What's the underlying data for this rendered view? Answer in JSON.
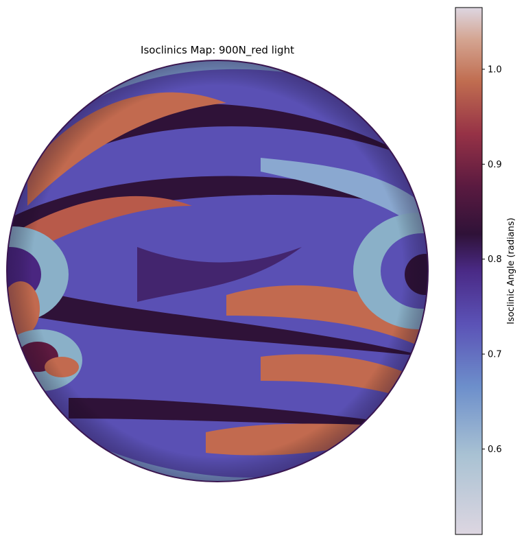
{
  "chart_data": {
    "type": "heatmap",
    "title": "Isoclinics Map: 900N_red light",
    "colormap": "twilight_shifted",
    "colorbar": {
      "label": "Isoclinic Angle (radians)",
      "range": [
        0.51,
        1.065
      ],
      "ticks": [
        0.6,
        0.7,
        0.8,
        0.9,
        1.0
      ],
      "tick_labels": [
        "0.6",
        "0.7",
        "0.8",
        "0.9",
        "1.0"
      ],
      "placement": "right"
    },
    "field": {
      "shape": "circular disk",
      "background_value": 0.69,
      "band_value_levels": [
        0.55,
        0.63,
        0.69,
        0.76,
        0.8,
        0.85,
        0.92,
        0.98
      ],
      "singular_points": [
        "left edge",
        "right edge",
        "lower-left"
      ]
    },
    "axes_visible": false,
    "grid": false,
    "colors": {
      "c0_55": "#d6cddc",
      "c0_60": "#8ab0c8",
      "c0_65": "#6a8bcc",
      "c0_70": "#5a50b4",
      "c0_75": "#4a2680",
      "c0_80": "#2f1238",
      "c0_85": "#5e1a40",
      "c0_90": "#9a3446",
      "c0_95": "#c26a4f",
      "c1_00": "#d39a7e",
      "c1_05": "#dcd3dd"
    }
  }
}
